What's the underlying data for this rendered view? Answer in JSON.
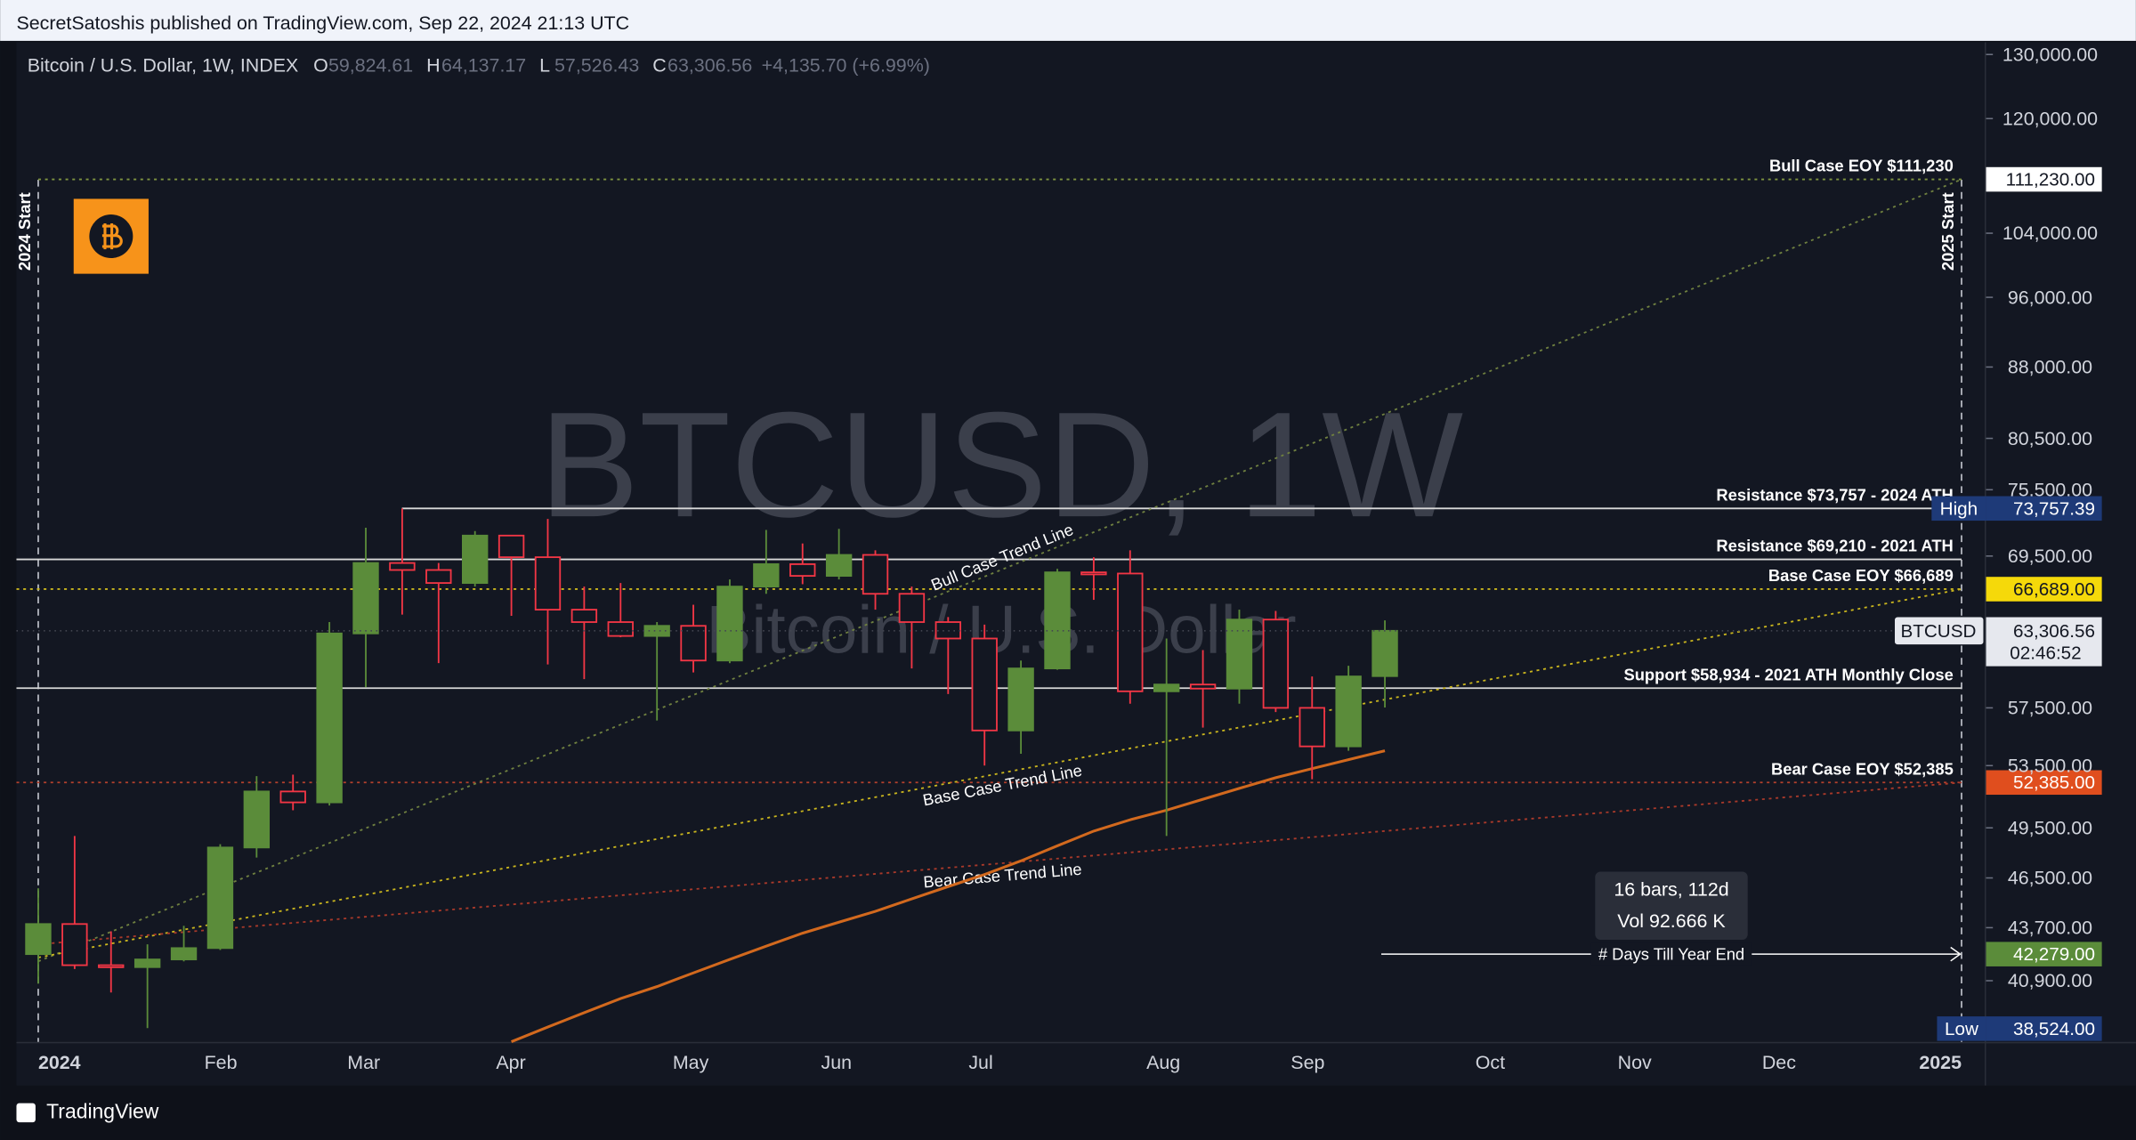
{
  "header": {
    "published": "SecretSatoshis published on TradingView.com, Sep 22, 2024 21:13 UTC"
  },
  "footer": {
    "brand": "TradingView"
  },
  "chart_data": {
    "type": "candlestick",
    "title": "Bitcoin / U.S. Dollar, 1W, INDEX",
    "legend": [
      {
        "key": "O",
        "text": "59,824.61"
      },
      {
        "key": "H",
        "text": "64,137.17"
      },
      {
        "key": "L",
        "text": "57,526.43"
      },
      {
        "key": "C",
        "text": "63,306.56"
      }
    ],
    "change": "+4,135.70 (+6.99%)",
    "watermark": [
      "BTCUSD, 1W",
      "Bitcoin / U.S. Dollar"
    ],
    "x_labels": [
      "2024",
      "Feb",
      "Mar",
      "Apr",
      "May",
      "Jun",
      "Jul",
      "Aug",
      "Sep",
      "Oct",
      "Nov",
      "Dec",
      "2025"
    ],
    "candles": {
      "open": [
        42280,
        43900,
        41700,
        41600,
        42000,
        42600,
        48300,
        51800,
        51100,
        63100,
        68900,
        68300,
        67200,
        71300,
        69400,
        65000,
        64000,
        62900,
        63700,
        61000,
        66900,
        68800,
        67800,
        69600,
        66300,
        64000,
        62700,
        55900,
        60400,
        68100,
        68000,
        58700,
        59200,
        58900,
        64200,
        57500,
        54800,
        59824.61
      ],
      "high": [
        45900,
        49000,
        43500,
        42800,
        43800,
        48500,
        52800,
        52900,
        64000,
        72000,
        73757.39,
        68900,
        71700,
        71300,
        72800,
        66900,
        67200,
        64000,
        65400,
        67500,
        71800,
        70600,
        71900,
        70000,
        66900,
        64400,
        63800,
        61000,
        68400,
        69400,
        70000,
        62700,
        61800,
        65000,
        64900,
        59800,
        60600,
        64137.17
      ],
      "low": [
        40750,
        41500,
        40300,
        38550,
        41900,
        42500,
        47700,
        50600,
        50900,
        59000,
        64600,
        60800,
        66900,
        64500,
        60700,
        59600,
        62800,
        56600,
        60100,
        60800,
        66300,
        67100,
        67500,
        65000,
        60400,
        58500,
        53500,
        54300,
        60300,
        65800,
        57800,
        49000,
        56100,
        57800,
        57200,
        52600,
        54500,
        57526.43
      ],
      "close": [
        43900,
        41700,
        41600,
        42000,
        42600,
        48300,
        51800,
        51100,
        63100,
        68900,
        68300,
        67200,
        71300,
        69400,
        65000,
        64000,
        62900,
        63700,
        61000,
        66900,
        68800,
        67800,
        69600,
        66300,
        64000,
        62700,
        55900,
        60400,
        68100,
        68000,
        58700,
        59200,
        58900,
        64200,
        57500,
        54800,
        59800,
        63306.56
      ]
    },
    "up_color": "#5b8c3a",
    "down_color": "#f23645",
    "moving_average": {
      "color": "#d2691e",
      "values": [
        null,
        null,
        null,
        null,
        null,
        null,
        null,
        null,
        null,
        null,
        null,
        null,
        null,
        37900,
        38600,
        39300,
        40000,
        40600,
        41300,
        42000,
        42700,
        43400,
        44000,
        44600,
        45300,
        46000,
        46700,
        47500,
        48400,
        49300,
        50000,
        50600,
        51300,
        52000,
        52700,
        53300,
        53900,
        54500
      ]
    },
    "ylim": [
      37890,
      132230
    ],
    "log_scale": true,
    "yticks": [
      {
        "value": 130000,
        "label": "130,000.00"
      },
      {
        "value": 120000,
        "label": "120,000.00"
      },
      {
        "value": 104000,
        "label": "104,000.00"
      },
      {
        "value": 96000,
        "label": "96,000.00"
      },
      {
        "value": 88000,
        "label": "88,000.00"
      },
      {
        "value": 80500,
        "label": "80,500.00"
      },
      {
        "value": 75500,
        "label": "75,500.00"
      },
      {
        "value": 69500,
        "label": "69,500.00"
      },
      {
        "value": 57500,
        "label": "57,500.00"
      },
      {
        "value": 53500,
        "label": "53,500.00"
      },
      {
        "value": 49500,
        "label": "49,500.00"
      },
      {
        "value": 46500,
        "label": "46,500.00"
      },
      {
        "value": 43700,
        "label": "43,700.00"
      },
      {
        "value": 40900,
        "label": "40,900.00"
      }
    ],
    "levels": [
      {
        "label": "Bull Case EOY $111,230",
        "price": 111230,
        "color": "#7f9440",
        "style": "dotted",
        "badge": "111,230.00",
        "badge_color": "#ffffff",
        "badge_text": "#131722"
      },
      {
        "label": "Resistance $73,757 - 2024 ATH",
        "price": 73757,
        "color": "#d8d8d8",
        "style": "solid"
      },
      {
        "label": "Resistance $69,210 - 2021 ATH",
        "price": 69210,
        "color": "#d8d8d8",
        "style": "solid"
      },
      {
        "label": "Base Case EOY $66,689",
        "price": 66689,
        "color": "#c9b51e",
        "style": "dotted",
        "badge": "66,689.00",
        "badge_color": "#f5d90a",
        "badge_text": "#131722"
      },
      {
        "label": "Support $58,934 - 2021 ATH Monthly Close",
        "price": 58934,
        "color": "#d8d8d8",
        "style": "solid"
      },
      {
        "label": "Bear Case EOY $52,385",
        "price": 52385,
        "color": "#b3402c",
        "style": "dotted",
        "badge": "52,385.00",
        "badge_color": "#e04e1e",
        "badge_text": "#ffffff"
      }
    ],
    "trend_lines": [
      {
        "label": "Bull Case Trend Line",
        "start": 41900,
        "end": 111230,
        "color": "#6f8040"
      },
      {
        "label": "Base Case Trend Line",
        "start": 42100,
        "end": 66689,
        "color": "#c9b51e"
      },
      {
        "label": "Bear Case Trend Line",
        "start": 42800,
        "end": 52385,
        "color": "#a8392a"
      }
    ],
    "markers": [
      "2024 Start",
      "2025 Start"
    ],
    "last_price": {
      "symbol": "BTCUSD",
      "value": 63306.56,
      "label": "63,306.56",
      "countdown": "02:46:52"
    },
    "high": {
      "tag": "High",
      "value": 73757.39,
      "label": "73,757.39"
    },
    "low": {
      "tag": "Low",
      "value": 38524,
      "label": "38,524.00"
    },
    "measure": {
      "bars": "16 bars, 112d",
      "volume": "Vol 92.666 K",
      "label": "# Days Till Year End",
      "value": 42279,
      "badge": "42,279.00"
    }
  }
}
